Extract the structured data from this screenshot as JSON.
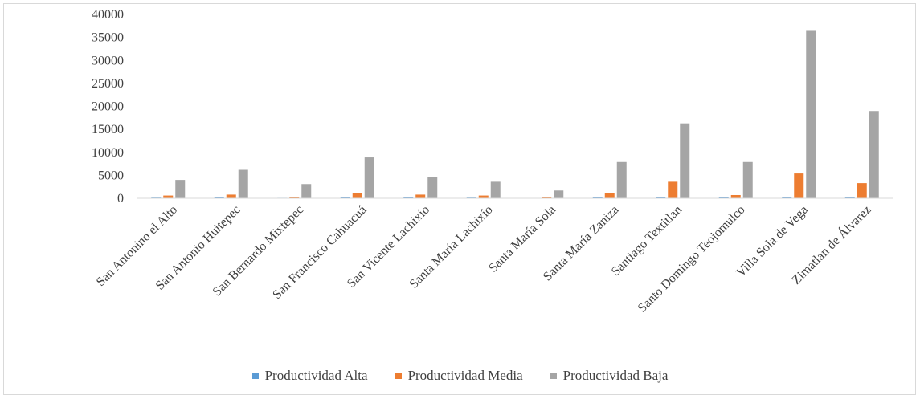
{
  "chart_data": {
    "type": "bar",
    "title": "",
    "xlabel": "",
    "ylabel": "",
    "ylim": [
      0,
      40000
    ],
    "yticks": [
      0,
      5000,
      10000,
      15000,
      20000,
      25000,
      30000,
      35000,
      40000
    ],
    "grid": false,
    "legend_position": "bottom",
    "categories": [
      "San Antonino el Alto",
      "San Antonio Huitepec",
      "San Bernardo Mixtepec",
      "San Francisco Cahuacuá",
      "San Vicente Lachixío",
      "Santa María Lachixío",
      "Santa María Sola",
      "Santa María Zaniza",
      "Santiago Textitlan",
      "Santo Domingo Teojomulco",
      "Villa Sola de Vega",
      "Zimatlan de Álvarez"
    ],
    "series": [
      {
        "name": "Productividad Alta",
        "color": "#5b9bd5",
        "values": [
          150,
          200,
          100,
          200,
          200,
          150,
          50,
          200,
          200,
          200,
          200,
          200
        ]
      },
      {
        "name": "Productividad Media",
        "color": "#ed7d31",
        "values": [
          600,
          800,
          300,
          1100,
          800,
          600,
          200,
          1100,
          3600,
          700,
          5400,
          3300
        ]
      },
      {
        "name": "Productividad Baja",
        "color": "#a5a5a5",
        "values": [
          4000,
          6200,
          3100,
          8900,
          4700,
          3600,
          1700,
          7900,
          16300,
          7900,
          36600,
          19000
        ]
      }
    ]
  }
}
